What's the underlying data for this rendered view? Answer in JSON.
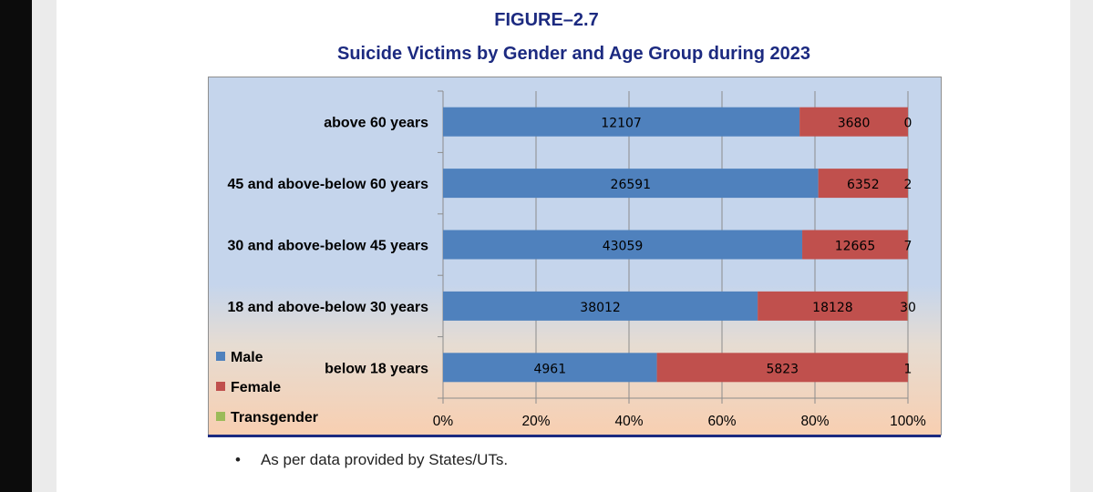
{
  "figure_label": "FIGURE–2.7",
  "note_bullet": "•",
  "note_text": "As per data provided by States/UTs.",
  "chart_data": {
    "type": "bar",
    "orientation": "horizontal",
    "stacked": "percent",
    "title": "Suicide Victims by Gender and Age Group during 2023",
    "categories": [
      "above 60 years",
      "45 and above-below 60 years",
      "30 and above-below 45 years",
      "18 and above-below 30 years",
      "below 18 years"
    ],
    "series": [
      {
        "name": "Male",
        "color": "#4f81bd",
        "values": [
          12107,
          26591,
          43059,
          38012,
          4961
        ]
      },
      {
        "name": "Female",
        "color": "#c0504d",
        "values": [
          3680,
          6352,
          12665,
          18128,
          5823
        ]
      },
      {
        "name": "Transgender",
        "color": "#9bbb59",
        "values": [
          0,
          2,
          7,
          30,
          1
        ]
      }
    ],
    "xticks": [
      "0%",
      "20%",
      "40%",
      "60%",
      "80%",
      "100%"
    ],
    "xlim": [
      0,
      100
    ],
    "grid": true,
    "legend_position": "bottom-left"
  }
}
